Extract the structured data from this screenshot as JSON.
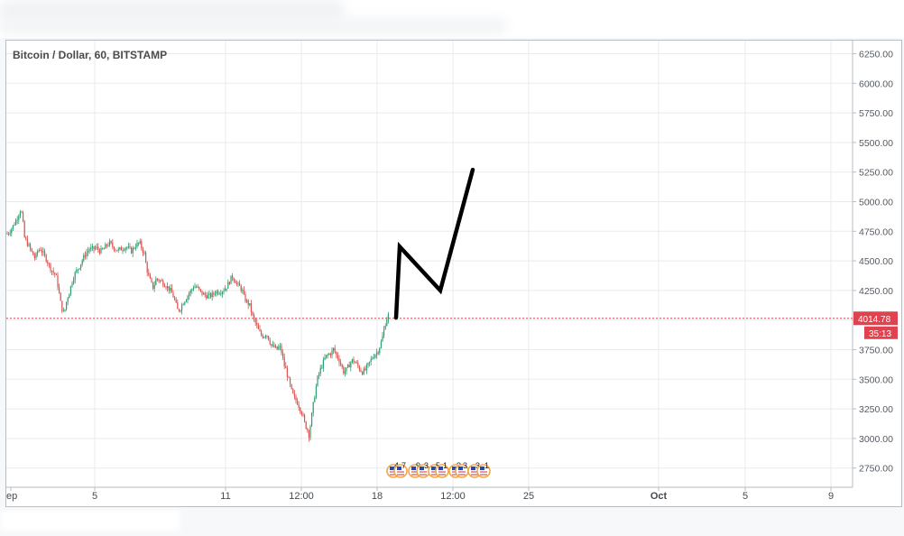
{
  "chart_data": {
    "type": "candlestick",
    "title": "Bitcoin / Dollar, 60, BITSTAMP",
    "ylim": [
      2600,
      6320
    ],
    "y_ticks": [
      "6250.00",
      "6000.00",
      "5750.00",
      "5500.00",
      "5250.00",
      "5000.00",
      "4750.00",
      "4500.00",
      "4250.00",
      "4000.00",
      "3750.00",
      "3500.00",
      "3250.00",
      "3000.00",
      "2750.00"
    ],
    "x_ticks": [
      "ep",
      "5",
      "11",
      "12:00",
      "18",
      "12:00",
      "25",
      "Oct",
      "5",
      "9"
    ],
    "price_line": {
      "value": 4014.78,
      "label": "4014.78",
      "countdown": "35:13",
      "color": "#e0424f"
    },
    "price_path": [
      [
        0,
        4730
      ],
      [
        3,
        4750
      ],
      [
        6,
        4790
      ],
      [
        9,
        4830
      ],
      [
        12,
        4880
      ],
      [
        15,
        4940
      ],
      [
        17,
        4860
      ],
      [
        19,
        4700
      ],
      [
        22,
        4650
      ],
      [
        25,
        4610
      ],
      [
        28,
        4560
      ],
      [
        31,
        4520
      ],
      [
        34,
        4590
      ],
      [
        37,
        4600
      ],
      [
        40,
        4560
      ],
      [
        43,
        4520
      ],
      [
        46,
        4470
      ],
      [
        50,
        4410
      ],
      [
        54,
        4380
      ],
      [
        57,
        4250
      ],
      [
        60,
        4110
      ],
      [
        63,
        4050
      ],
      [
        66,
        4170
      ],
      [
        69,
        4240
      ],
      [
        72,
        4330
      ],
      [
        75,
        4390
      ],
      [
        78,
        4430
      ],
      [
        81,
        4470
      ],
      [
        84,
        4520
      ],
      [
        87,
        4560
      ],
      [
        91,
        4600
      ],
      [
        95,
        4600
      ],
      [
        99,
        4610
      ],
      [
        103,
        4580
      ],
      [
        107,
        4600
      ],
      [
        111,
        4640
      ],
      [
        114,
        4650
      ],
      [
        117,
        4620
      ],
      [
        120,
        4600
      ],
      [
        123,
        4590
      ],
      [
        126,
        4600
      ],
      [
        129,
        4610
      ],
      [
        132,
        4620
      ],
      [
        135,
        4600
      ],
      [
        138,
        4580
      ],
      [
        141,
        4620
      ],
      [
        144,
        4640
      ],
      [
        147,
        4650
      ],
      [
        150,
        4590
      ],
      [
        152,
        4560
      ],
      [
        154,
        4460
      ],
      [
        156,
        4390
      ],
      [
        159,
        4320
      ],
      [
        162,
        4270
      ],
      [
        165,
        4350
      ],
      [
        168,
        4340
      ],
      [
        172,
        4320
      ],
      [
        176,
        4290
      ],
      [
        180,
        4260
      ],
      [
        183,
        4220
      ],
      [
        186,
        4160
      ],
      [
        189,
        4080
      ],
      [
        192,
        4100
      ],
      [
        195,
        4150
      ],
      [
        198,
        4180
      ],
      [
        201,
        4220
      ],
      [
        204,
        4250
      ],
      [
        207,
        4290
      ],
      [
        211,
        4270
      ],
      [
        215,
        4230
      ],
      [
        219,
        4210
      ],
      [
        223,
        4200
      ],
      [
        227,
        4210
      ],
      [
        231,
        4240
      ],
      [
        235,
        4240
      ],
      [
        239,
        4250
      ],
      [
        243,
        4280
      ],
      [
        246,
        4320
      ],
      [
        249,
        4370
      ],
      [
        252,
        4340
      ],
      [
        255,
        4300
      ],
      [
        258,
        4280
      ],
      [
        261,
        4240
      ],
      [
        263,
        4180
      ],
      [
        266,
        4150
      ],
      [
        269,
        4120
      ],
      [
        272,
        4030
      ],
      [
        275,
        3980
      ],
      [
        278,
        3920
      ],
      [
        281,
        3880
      ],
      [
        284,
        3860
      ],
      [
        287,
        3890
      ],
      [
        290,
        3840
      ],
      [
        293,
        3780
      ],
      [
        296,
        3770
      ],
      [
        299,
        3750
      ],
      [
        302,
        3780
      ],
      [
        305,
        3700
      ],
      [
        307,
        3620
      ],
      [
        309,
        3580
      ],
      [
        311,
        3520
      ],
      [
        313,
        3460
      ],
      [
        316,
        3380
      ],
      [
        319,
        3330
      ],
      [
        322,
        3300
      ],
      [
        324,
        3260
      ],
      [
        326,
        3230
      ],
      [
        328,
        3180
      ],
      [
        330,
        3120
      ],
      [
        333,
        3070
      ],
      [
        335,
        3010
      ],
      [
        336,
        3110
      ],
      [
        338,
        3220
      ],
      [
        340,
        3330
      ],
      [
        342,
        3420
      ],
      [
        344,
        3510
      ],
      [
        347,
        3580
      ],
      [
        350,
        3640
      ],
      [
        353,
        3690
      ],
      [
        356,
        3710
      ],
      [
        359,
        3720
      ],
      [
        362,
        3760
      ],
      [
        364,
        3710
      ],
      [
        367,
        3680
      ],
      [
        370,
        3620
      ],
      [
        373,
        3560
      ],
      [
        376,
        3580
      ],
      [
        379,
        3620
      ],
      [
        382,
        3660
      ],
      [
        385,
        3650
      ],
      [
        388,
        3620
      ],
      [
        391,
        3580
      ],
      [
        394,
        3560
      ],
      [
        397,
        3580
      ],
      [
        400,
        3620
      ],
      [
        403,
        3660
      ],
      [
        406,
        3700
      ],
      [
        409,
        3720
      ],
      [
        411,
        3740
      ],
      [
        414,
        3800
      ],
      [
        416,
        3860
      ],
      [
        418,
        3930
      ],
      [
        420,
        4000
      ],
      [
        423,
        4050
      ]
    ],
    "projection_line": [
      [
        4390,
        4020
      ],
      [
        4430,
        4620
      ],
      [
        4880,
        4250
      ],
      [
        5240,
        5270
      ]
    ],
    "events": [
      "4",
      "7",
      "9",
      "3",
      "5",
      "1",
      "3",
      "3",
      "3",
      "1"
    ]
  }
}
